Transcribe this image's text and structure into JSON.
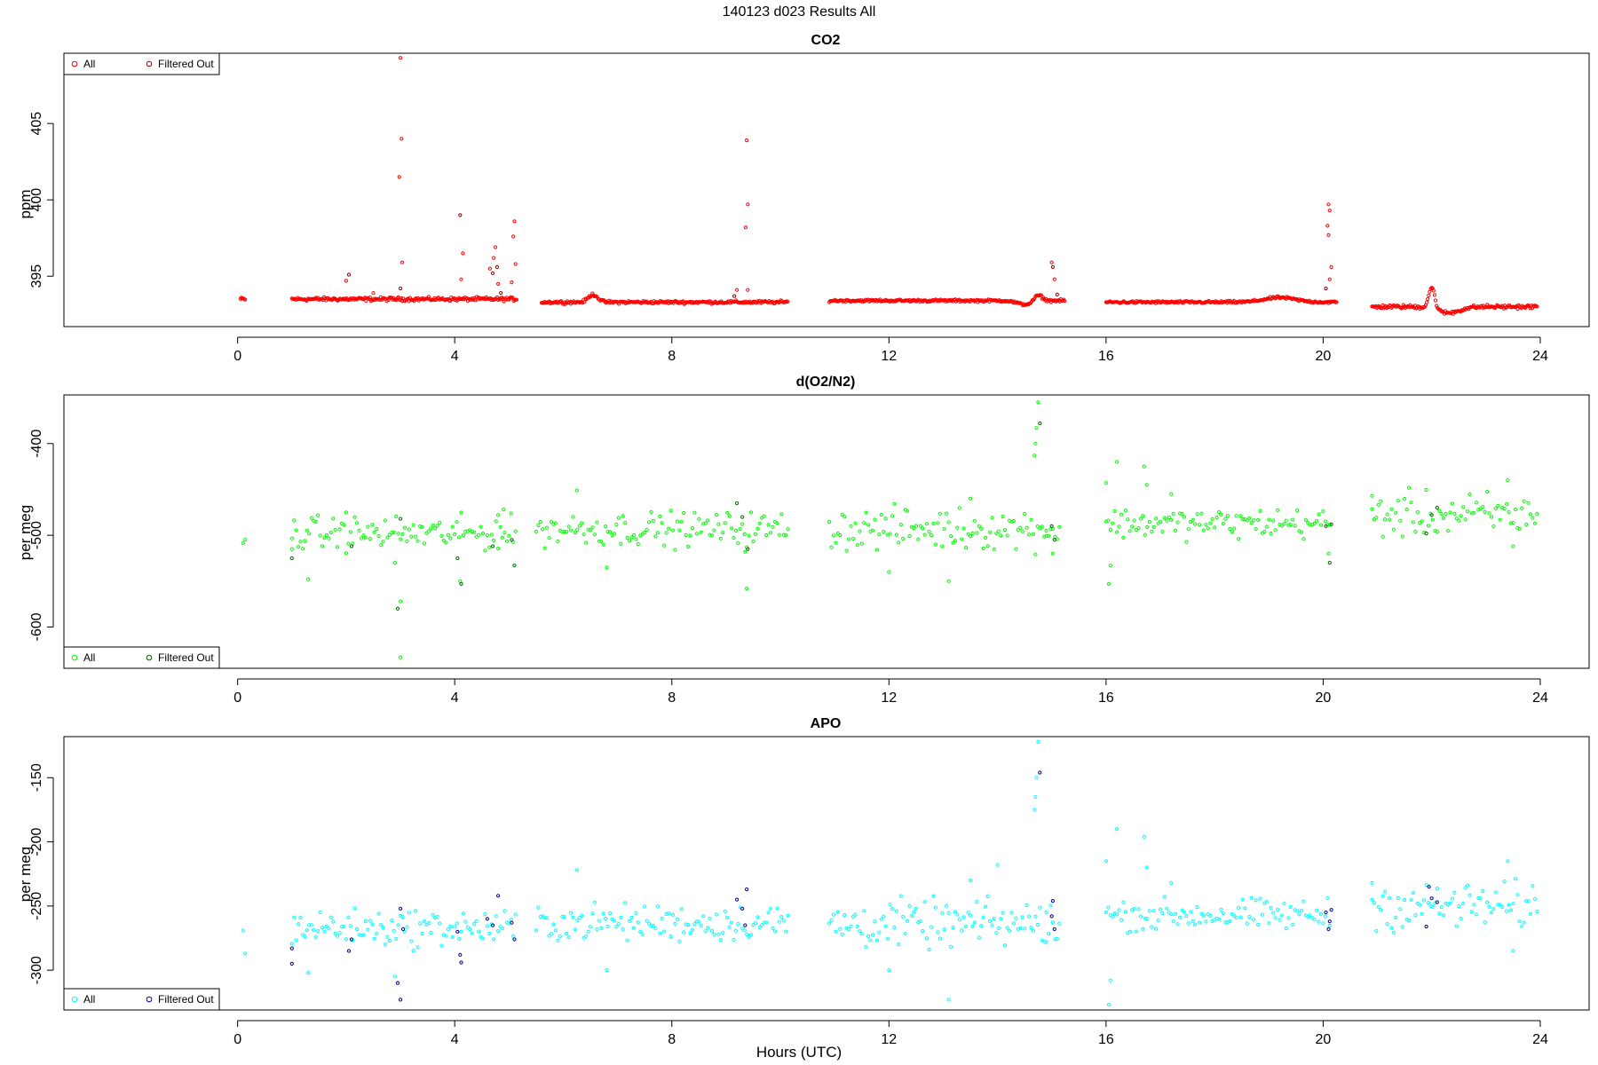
{
  "figure": {
    "title": "140123   d023   Results All",
    "xlabel": "Hours (UTC)"
  },
  "chart_data": [
    {
      "id": "co2",
      "type": "scatter",
      "title": "CO2",
      "xlabel": "",
      "ylabel": "ppm",
      "xlim": [
        -3.2,
        24.9
      ],
      "ylim": [
        391.7,
        409.6
      ],
      "xticks": [
        0,
        4,
        8,
        12,
        16,
        20,
        24
      ],
      "yticks": [
        395,
        400,
        405
      ],
      "legend": {
        "placement": "top-left",
        "entries": [
          "All",
          "Filtered Out"
        ]
      },
      "colors": {
        "all": "#ff0000",
        "filtered": "#8b0000"
      },
      "segments": [
        {
          "x_start": 0.05,
          "x_end": 0.15,
          "level": 393.5,
          "amp": 0.15
        },
        {
          "x_start": 1.0,
          "x_end": 5.15,
          "level": 393.5,
          "amp": 0.15
        },
        {
          "x_start": 5.6,
          "x_end": 10.15,
          "level": 393.3,
          "amp": 0.12
        },
        {
          "x_start": 10.9,
          "x_end": 15.25,
          "level": 393.4,
          "amp": 0.1
        },
        {
          "x_start": 16.0,
          "x_end": 20.25,
          "level": 393.3,
          "amp": 0.1
        },
        {
          "x_start": 20.9,
          "x_end": 23.95,
          "level": 393.0,
          "amp": 0.15
        }
      ],
      "bumps": [
        {
          "x": 6.55,
          "dy": 0.5,
          "w": 0.12
        },
        {
          "x": 14.75,
          "dy": 0.4,
          "w": 0.1
        },
        {
          "x": 19.2,
          "dy": 0.3,
          "w": 0.4
        },
        {
          "x": 22.0,
          "dy": 1.4,
          "w": 0.08
        },
        {
          "x": 22.3,
          "dy": -0.4,
          "w": 0.3
        },
        {
          "x": 14.5,
          "dy": -0.25,
          "w": 0.2
        }
      ],
      "outliers": [
        {
          "x": 2.05,
          "y": 395.1,
          "f": 1
        },
        {
          "x": 2.0,
          "y": 394.7,
          "f": 0
        },
        {
          "x": 2.5,
          "y": 393.9,
          "f": 0
        },
        {
          "x": 3.0,
          "y": 409.3,
          "f": 0
        },
        {
          "x": 3.02,
          "y": 404.0,
          "f": 0
        },
        {
          "x": 2.98,
          "y": 401.5,
          "f": 0
        },
        {
          "x": 3.03,
          "y": 395.9,
          "f": 0
        },
        {
          "x": 3.0,
          "y": 394.2,
          "f": 1
        },
        {
          "x": 4.1,
          "y": 399.0,
          "f": 1
        },
        {
          "x": 4.15,
          "y": 396.5,
          "f": 0
        },
        {
          "x": 4.12,
          "y": 394.8,
          "f": 0
        },
        {
          "x": 4.65,
          "y": 395.5,
          "f": 0
        },
        {
          "x": 4.7,
          "y": 395.2,
          "f": 1
        },
        {
          "x": 4.72,
          "y": 396.2,
          "f": 0
        },
        {
          "x": 4.75,
          "y": 396.9,
          "f": 0
        },
        {
          "x": 4.78,
          "y": 395.6,
          "f": 1
        },
        {
          "x": 4.8,
          "y": 394.5,
          "f": 0
        },
        {
          "x": 4.85,
          "y": 393.9,
          "f": 1
        },
        {
          "x": 5.1,
          "y": 398.6,
          "f": 0
        },
        {
          "x": 5.08,
          "y": 397.6,
          "f": 0
        },
        {
          "x": 5.12,
          "y": 395.8,
          "f": 0
        },
        {
          "x": 5.05,
          "y": 394.6,
          "f": 0
        },
        {
          "x": 9.2,
          "y": 394.1,
          "f": 0
        },
        {
          "x": 9.15,
          "y": 393.7,
          "f": 1
        },
        {
          "x": 9.38,
          "y": 403.9,
          "f": 0
        },
        {
          "x": 9.4,
          "y": 399.7,
          "f": 0
        },
        {
          "x": 9.36,
          "y": 398.2,
          "f": 0
        },
        {
          "x": 9.4,
          "y": 394.1,
          "f": 0
        },
        {
          "x": 15.0,
          "y": 395.9,
          "f": 0
        },
        {
          "x": 15.02,
          "y": 395.6,
          "f": 1
        },
        {
          "x": 15.05,
          "y": 394.8,
          "f": 0
        },
        {
          "x": 15.1,
          "y": 393.8,
          "f": 1
        },
        {
          "x": 20.1,
          "y": 399.7,
          "f": 0
        },
        {
          "x": 20.12,
          "y": 399.3,
          "f": 0
        },
        {
          "x": 20.08,
          "y": 398.3,
          "f": 0
        },
        {
          "x": 20.1,
          "y": 397.7,
          "f": 0
        },
        {
          "x": 20.15,
          "y": 395.6,
          "f": 0
        },
        {
          "x": 20.12,
          "y": 394.8,
          "f": 0
        },
        {
          "x": 20.05,
          "y": 394.2,
          "f": 1
        }
      ]
    },
    {
      "id": "o2n2",
      "type": "scatter",
      "title": "d(O2/N2)",
      "xlabel": "",
      "ylabel": "per meg",
      "xlim": [
        -3.2,
        24.9
      ],
      "ylim": [
        -645,
        -347
      ],
      "xticks": [
        0,
        4,
        8,
        12,
        16,
        20,
        24
      ],
      "yticks": [
        -600,
        -500,
        -400
      ],
      "legend": {
        "placement": "bottom-left",
        "entries": [
          "All",
          "Filtered Out"
        ]
      },
      "colors": {
        "all": "#00ff00",
        "filtered": "#006400"
      },
      "segments": [
        {
          "x_start": 0.1,
          "x_end": 0.15,
          "level": -505,
          "amp": 6
        },
        {
          "x_start": 1.0,
          "x_end": 5.15,
          "level": -498,
          "amp": 9
        },
        {
          "x_start": 5.5,
          "x_end": 10.15,
          "level": -493,
          "amp": 9
        },
        {
          "x_start": 10.9,
          "x_end": 15.15,
          "level": -493,
          "amp": 11
        },
        {
          "x_start": 16.0,
          "x_end": 20.15,
          "level": -487,
          "amp": 8
        },
        {
          "x_start": 20.9,
          "x_end": 23.95,
          "level": -478,
          "amp": 12
        }
      ],
      "outliers": [
        {
          "x": 1.0,
          "y": -515,
          "f": 0
        },
        {
          "x": 1.0,
          "y": -525,
          "f": 1
        },
        {
          "x": 1.3,
          "y": -548,
          "f": 0
        },
        {
          "x": 2.1,
          "y": -512,
          "f": 1
        },
        {
          "x": 2.0,
          "y": -475,
          "f": 0
        },
        {
          "x": 2.9,
          "y": -530,
          "f": 0
        },
        {
          "x": 2.95,
          "y": -580,
          "f": 1
        },
        {
          "x": 3.0,
          "y": -572,
          "f": 0
        },
        {
          "x": 3.0,
          "y": -633,
          "f": 0
        },
        {
          "x": 3.0,
          "y": -482,
          "f": 1
        },
        {
          "x": 4.1,
          "y": -550,
          "f": 0
        },
        {
          "x": 4.12,
          "y": -553,
          "f": 1
        },
        {
          "x": 4.05,
          "y": -525,
          "f": 1
        },
        {
          "x": 4.7,
          "y": -512,
          "f": 1
        },
        {
          "x": 4.8,
          "y": -478,
          "f": 0
        },
        {
          "x": 4.9,
          "y": -472,
          "f": 0
        },
        {
          "x": 5.1,
          "y": -533,
          "f": 1
        },
        {
          "x": 5.05,
          "y": -505,
          "f": 1
        },
        {
          "x": 6.25,
          "y": -451,
          "f": 0
        },
        {
          "x": 6.8,
          "y": -535,
          "f": 0
        },
        {
          "x": 9.2,
          "y": -465,
          "f": 1
        },
        {
          "x": 9.3,
          "y": -480,
          "f": 1
        },
        {
          "x": 9.35,
          "y": -518,
          "f": 0
        },
        {
          "x": 9.38,
          "y": -558,
          "f": 0
        },
        {
          "x": 9.4,
          "y": -515,
          "f": 1
        },
        {
          "x": 12.0,
          "y": -540,
          "f": 0
        },
        {
          "x": 13.1,
          "y": -550,
          "f": 0
        },
        {
          "x": 13.5,
          "y": -460,
          "f": 0
        },
        {
          "x": 14.7,
          "y": -400,
          "f": 0
        },
        {
          "x": 14.72,
          "y": -383,
          "f": 0
        },
        {
          "x": 14.75,
          "y": -355,
          "f": 0
        },
        {
          "x": 14.78,
          "y": -378,
          "f": 1
        },
        {
          "x": 14.68,
          "y": -413,
          "f": 0
        },
        {
          "x": 14.9,
          "y": -495,
          "f": 0
        },
        {
          "x": 15.0,
          "y": -490,
          "f": 1
        },
        {
          "x": 15.05,
          "y": -505,
          "f": 1
        },
        {
          "x": 15.02,
          "y": -520,
          "f": 0
        },
        {
          "x": 16.0,
          "y": -443,
          "f": 0
        },
        {
          "x": 16.05,
          "y": -553,
          "f": 0
        },
        {
          "x": 16.08,
          "y": -533,
          "f": 0
        },
        {
          "x": 16.2,
          "y": -420,
          "f": 0
        },
        {
          "x": 16.7,
          "y": -425,
          "f": 0
        },
        {
          "x": 16.75,
          "y": -445,
          "f": 0
        },
        {
          "x": 17.2,
          "y": -455,
          "f": 0
        },
        {
          "x": 20.05,
          "y": -490,
          "f": 1
        },
        {
          "x": 20.1,
          "y": -520,
          "f": 0
        },
        {
          "x": 20.12,
          "y": -530,
          "f": 1
        },
        {
          "x": 20.15,
          "y": -488,
          "f": 1
        },
        {
          "x": 20.9,
          "y": -457,
          "f": 0
        },
        {
          "x": 21.9,
          "y": -498,
          "f": 1
        },
        {
          "x": 22.0,
          "y": -478,
          "f": 1
        },
        {
          "x": 22.1,
          "y": -470,
          "f": 1
        },
        {
          "x": 23.4,
          "y": -440,
          "f": 0
        },
        {
          "x": 23.5,
          "y": -512,
          "f": 0
        }
      ]
    },
    {
      "id": "apo",
      "type": "scatter",
      "title": "APO",
      "xlabel": "Hours (UTC)",
      "ylabel": "per meg",
      "xlim": [
        -3.2,
        24.9
      ],
      "ylim": [
        -331,
        -118
      ],
      "xticks": [
        0,
        4,
        8,
        12,
        16,
        20,
        24
      ],
      "yticks": [
        -300,
        -250,
        -200,
        -150
      ],
      "legend": {
        "placement": "bottom-left",
        "entries": [
          "All",
          "Filtered Out"
        ]
      },
      "colors": {
        "all": "#00ffff",
        "filtered": "#00008b"
      },
      "segments": [
        {
          "x_start": 0.1,
          "x_end": 0.15,
          "level": -277,
          "amp": 6
        },
        {
          "x_start": 1.0,
          "x_end": 5.15,
          "level": -267,
          "amp": 7
        },
        {
          "x_start": 5.5,
          "x_end": 10.15,
          "level": -263,
          "amp": 7
        },
        {
          "x_start": 10.9,
          "x_end": 15.15,
          "level": -264,
          "amp": 9
        },
        {
          "x_start": 16.0,
          "x_end": 20.15,
          "level": -257,
          "amp": 6
        },
        {
          "x_start": 20.9,
          "x_end": 23.95,
          "level": -250,
          "amp": 9
        }
      ],
      "outliers": [
        {
          "x": 1.0,
          "y": -283,
          "f": 1
        },
        {
          "x": 1.0,
          "y": -295,
          "f": 1
        },
        {
          "x": 1.3,
          "y": -302,
          "f": 0
        },
        {
          "x": 2.1,
          "y": -276,
          "f": 1
        },
        {
          "x": 2.05,
          "y": -285,
          "f": 1
        },
        {
          "x": 2.9,
          "y": -305,
          "f": 0
        },
        {
          "x": 2.95,
          "y": -310,
          "f": 1
        },
        {
          "x": 3.0,
          "y": -323,
          "f": 1
        },
        {
          "x": 3.0,
          "y": -252,
          "f": 1
        },
        {
          "x": 3.05,
          "y": -268,
          "f": 1
        },
        {
          "x": 4.1,
          "y": -288,
          "f": 1
        },
        {
          "x": 4.12,
          "y": -294,
          "f": 1
        },
        {
          "x": 4.05,
          "y": -270,
          "f": 1
        },
        {
          "x": 4.6,
          "y": -260,
          "f": 1
        },
        {
          "x": 4.7,
          "y": -265,
          "f": 1
        },
        {
          "x": 4.8,
          "y": -242,
          "f": 1
        },
        {
          "x": 5.1,
          "y": -276,
          "f": 1
        },
        {
          "x": 5.05,
          "y": -263,
          "f": 1
        },
        {
          "x": 6.25,
          "y": -222,
          "f": 0
        },
        {
          "x": 6.8,
          "y": -300,
          "f": 0
        },
        {
          "x": 9.2,
          "y": -245,
          "f": 1
        },
        {
          "x": 9.3,
          "y": -252,
          "f": 1
        },
        {
          "x": 9.35,
          "y": -265,
          "f": 1
        },
        {
          "x": 9.38,
          "y": -237,
          "f": 1
        },
        {
          "x": 12.0,
          "y": -300,
          "f": 0
        },
        {
          "x": 13.1,
          "y": -323,
          "f": 0
        },
        {
          "x": 13.5,
          "y": -230,
          "f": 0
        },
        {
          "x": 14.0,
          "y": -218,
          "f": 0
        },
        {
          "x": 14.7,
          "y": -165,
          "f": 0
        },
        {
          "x": 14.72,
          "y": -150,
          "f": 0
        },
        {
          "x": 14.75,
          "y": -122,
          "f": 0
        },
        {
          "x": 14.78,
          "y": -146,
          "f": 1
        },
        {
          "x": 14.68,
          "y": -175,
          "f": 0
        },
        {
          "x": 14.9,
          "y": -255,
          "f": 0
        },
        {
          "x": 15.0,
          "y": -258,
          "f": 1
        },
        {
          "x": 15.05,
          "y": -268,
          "f": 1
        },
        {
          "x": 15.02,
          "y": -246,
          "f": 1
        },
        {
          "x": 16.0,
          "y": -215,
          "f": 0
        },
        {
          "x": 16.05,
          "y": -327,
          "f": 0
        },
        {
          "x": 16.08,
          "y": -308,
          "f": 0
        },
        {
          "x": 16.2,
          "y": -190,
          "f": 0
        },
        {
          "x": 16.7,
          "y": -196,
          "f": 0
        },
        {
          "x": 16.75,
          "y": -220,
          "f": 0
        },
        {
          "x": 17.2,
          "y": -232,
          "f": 0
        },
        {
          "x": 20.05,
          "y": -255,
          "f": 1
        },
        {
          "x": 20.1,
          "y": -268,
          "f": 1
        },
        {
          "x": 20.12,
          "y": -262,
          "f": 1
        },
        {
          "x": 20.15,
          "y": -253,
          "f": 1
        },
        {
          "x": 20.9,
          "y": -232,
          "f": 0
        },
        {
          "x": 21.9,
          "y": -266,
          "f": 1
        },
        {
          "x": 22.0,
          "y": -244,
          "f": 1
        },
        {
          "x": 21.95,
          "y": -235,
          "f": 1
        },
        {
          "x": 22.1,
          "y": -247,
          "f": 1
        },
        {
          "x": 23.4,
          "y": -215,
          "f": 0
        },
        {
          "x": 23.5,
          "y": -285,
          "f": 0
        }
      ]
    }
  ]
}
